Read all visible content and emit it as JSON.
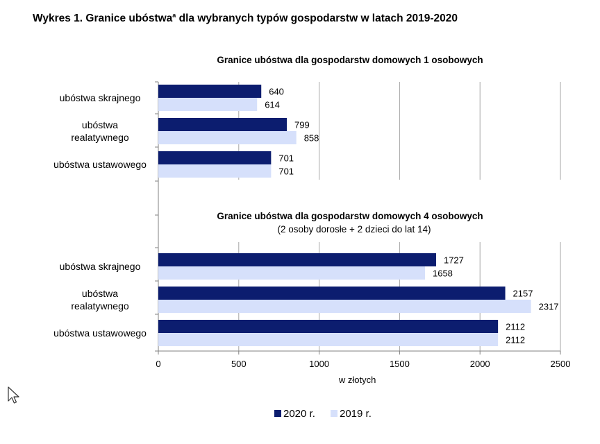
{
  "title": {
    "text": "Wykres 1. Granice ubóstwa",
    "superscript": "a",
    "rest": " dla wybranych typów gospodarstw w latach 2019-2020"
  },
  "colors": {
    "series_2020": "#0c1d6f",
    "series_2019": "#d6e0fb",
    "grid": "#a6a6a6",
    "axis": "#808080"
  },
  "chart_data": {
    "type": "bar",
    "orientation": "horizontal",
    "xlabel": "w złotych",
    "xlim": [
      0,
      2500
    ],
    "xticks": [
      0,
      500,
      1000,
      1500,
      2000,
      2500
    ],
    "grid": true,
    "legend_position": "bottom",
    "legend": [
      "2020 r.",
      "2019 r."
    ],
    "panels": [
      {
        "title": "Granice ubóstwa dla gospodarstw domowych 1 osobowych",
        "subtitle": "",
        "categories": [
          [
            "ubóstwa skrajnego"
          ],
          [
            "ubóstwa",
            "realatywnego"
          ],
          [
            "ubóstwa ustawowego"
          ]
        ],
        "series": [
          {
            "name": "2020 r.",
            "values": [
              640,
              799,
              701
            ]
          },
          {
            "name": "2019 r.",
            "values": [
              614,
              858,
              701
            ]
          }
        ]
      },
      {
        "title": "Granice ubóstwa dla gospodarstw domowych 4 osobowych",
        "subtitle": "(2 osoby dorosłe + 2 dzieci do lat 14)",
        "categories": [
          [
            "ubóstwa skrajnego"
          ],
          [
            "ubóstwa",
            "realatywnego"
          ],
          [
            "ubóstwa ustawowego"
          ]
        ],
        "series": [
          {
            "name": "2020 r.",
            "values": [
              1727,
              2157,
              2112
            ]
          },
          {
            "name": "2019 r.",
            "values": [
              1658,
              2317,
              2112
            ]
          }
        ]
      }
    ]
  }
}
